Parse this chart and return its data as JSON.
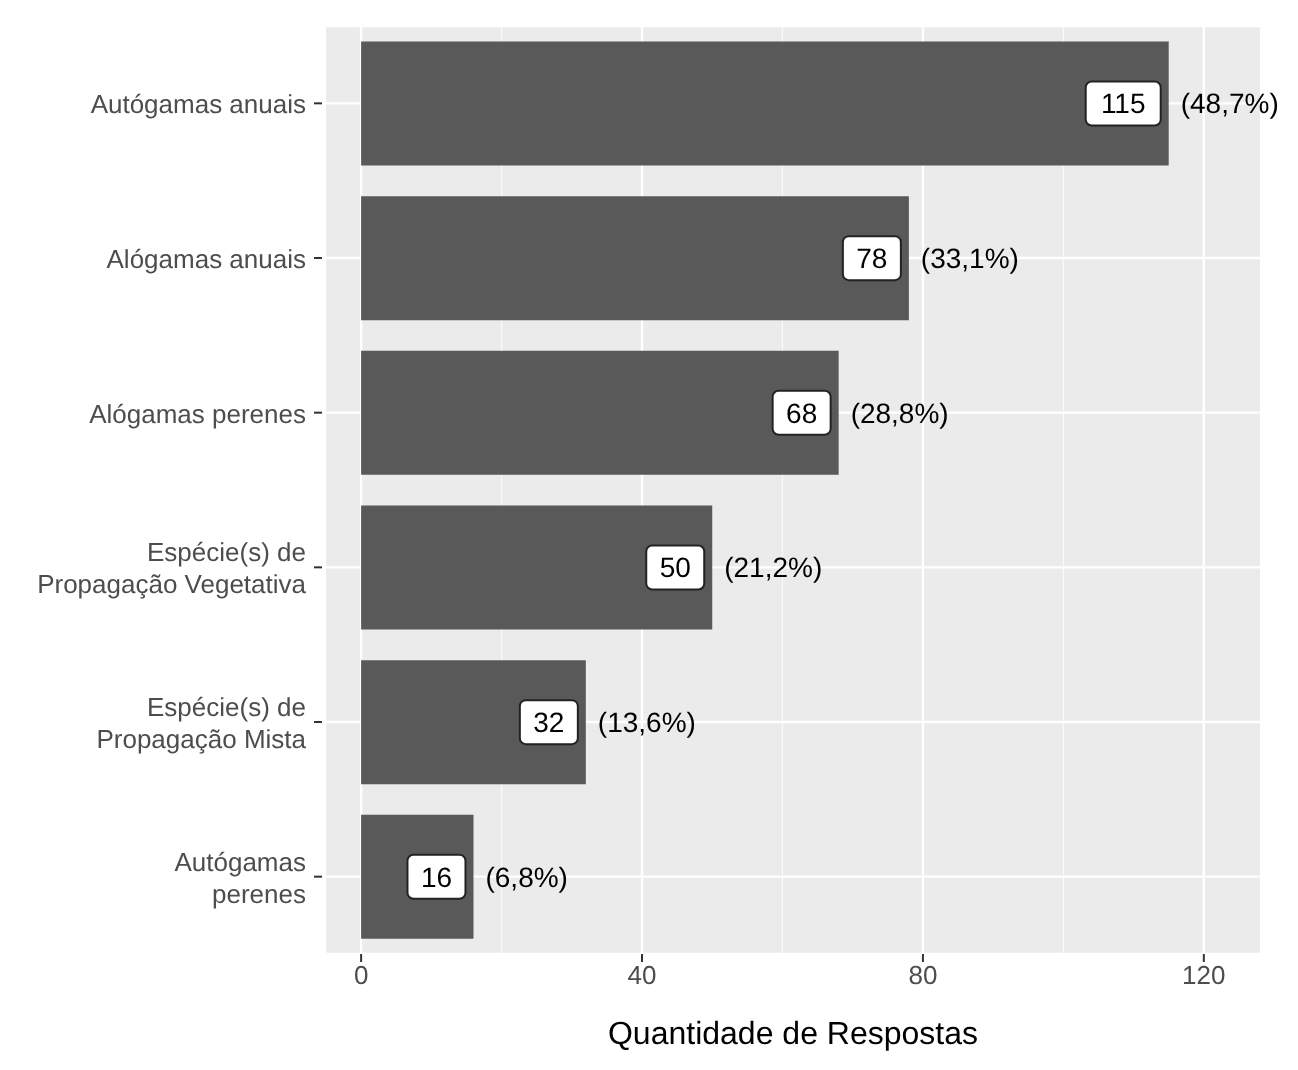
{
  "chart_data": {
    "type": "bar",
    "orientation": "horizontal",
    "xlabel": "Quantidade de Respostas",
    "categories": [
      "Autógamas anuais",
      "Alógamas anuais",
      "Alógamas perenes",
      "Espécie(s) de\nPropagação Vegetativa",
      "Espécie(s) de\nPropagação Mista",
      "Autógamas\nperenes"
    ],
    "values": [
      115,
      78,
      68,
      50,
      32,
      16
    ],
    "value_labels": [
      "115 (48,7%)",
      "78 (33,1%)",
      "68 (28,8%)",
      "50 (21,2%)",
      "32 (13,6%)",
      "16 (6,8%)"
    ],
    "color": "#595959",
    "xlim": [
      -5,
      128
    ],
    "xticks": [
      0,
      40,
      80,
      120
    ],
    "grid": true
  }
}
